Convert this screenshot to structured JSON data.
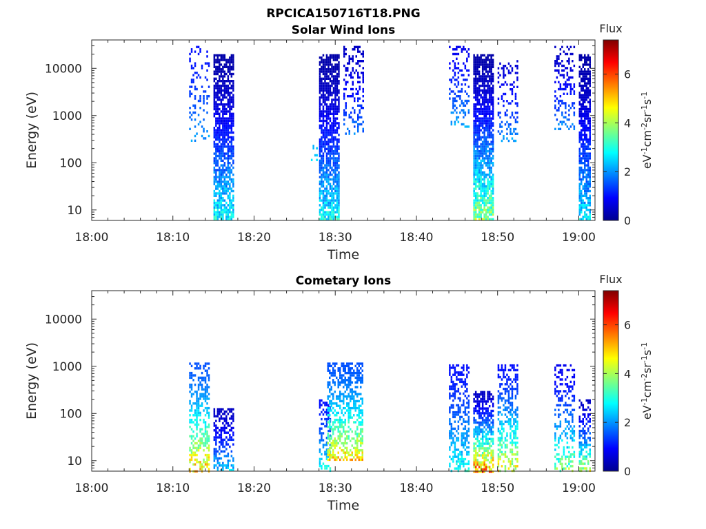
{
  "figure": {
    "title": "RPCICA150716T18.PNG"
  },
  "chart_data": [
    {
      "type": "heatmap",
      "title": "Solar Wind Ions",
      "xlabel": "Time",
      "ylabel": "Energy (eV)",
      "x_range": [
        "18:00",
        "19:02"
      ],
      "y_scale": "log",
      "y_range": [
        6,
        40000
      ],
      "x_ticks": [
        "18:00",
        "18:10",
        "18:20",
        "18:30",
        "18:40",
        "18:50",
        "19:00"
      ],
      "y_ticks": [
        "10",
        "100",
        "1000",
        "10000"
      ],
      "colorbar": {
        "title": "Flux",
        "label": "eV-1cm-2sr-1s-1",
        "ticks": [
          "0",
          "2",
          "4",
          "6"
        ],
        "range": [
          0,
          7.4
        ],
        "colormap": "jet"
      },
      "bursts": [
        {
          "t_start": "18:12",
          "t_end": "18:14",
          "e_min": 300,
          "e_max": 30000,
          "flux_low": 1.0,
          "flux_high": 2.4,
          "density": 0.22
        },
        {
          "t_start": "18:15",
          "t_end": "18:17",
          "e_min": 6,
          "e_max": 20000,
          "flux_low": 0.3,
          "flux_high": 3.5,
          "density": 0.75
        },
        {
          "t_start": "18:27",
          "t_end": "18:28",
          "e_min": 80,
          "e_max": 600,
          "flux_low": 2.0,
          "flux_high": 3.0,
          "density": 0.1
        },
        {
          "t_start": "18:28",
          "t_end": "18:30",
          "e_min": 6,
          "e_max": 20000,
          "flux_low": 0.3,
          "flux_high": 3.5,
          "density": 0.8
        },
        {
          "t_start": "18:31",
          "t_end": "18:33",
          "e_min": 400,
          "e_max": 30000,
          "flux_low": 0.5,
          "flux_high": 2.2,
          "density": 0.3
        },
        {
          "t_start": "18:44",
          "t_end": "18:46",
          "e_min": 600,
          "e_max": 30000,
          "flux_low": 0.8,
          "flux_high": 2.5,
          "density": 0.3
        },
        {
          "t_start": "18:47",
          "t_end": "18:49",
          "e_min": 6,
          "e_max": 20000,
          "flux_low": 0.3,
          "flux_high": 4.8,
          "density": 0.85
        },
        {
          "t_start": "18:50",
          "t_end": "18:52",
          "e_min": 300,
          "e_max": 15000,
          "flux_low": 0.6,
          "flux_high": 2.4,
          "density": 0.25
        },
        {
          "t_start": "18:57",
          "t_end": "18:59",
          "e_min": 500,
          "e_max": 30000,
          "flux_low": 0.5,
          "flux_high": 2.3,
          "density": 0.3
        },
        {
          "t_start": "19:00",
          "t_end": "19:01",
          "e_min": 6,
          "e_max": 20000,
          "flux_low": 0.3,
          "flux_high": 3.2,
          "density": 0.75
        }
      ]
    },
    {
      "type": "heatmap",
      "title": "Cometary Ions",
      "xlabel": "Time",
      "ylabel": "Energy (eV)",
      "x_range": [
        "18:00",
        "19:02"
      ],
      "y_scale": "log",
      "y_range": [
        6,
        40000
      ],
      "x_ticks": [
        "18:00",
        "18:10",
        "18:20",
        "18:30",
        "18:40",
        "18:50",
        "19:00"
      ],
      "y_ticks": [
        "10",
        "100",
        "1000",
        "10000"
      ],
      "colorbar": {
        "title": "Flux",
        "label": "eV-1cm-2sr-1s-1",
        "ticks": [
          "0",
          "2",
          "4",
          "6"
        ],
        "range": [
          0,
          7.4
        ],
        "colormap": "jet"
      },
      "bursts": [
        {
          "t_start": "18:12",
          "t_end": "18:14",
          "e_min": 6,
          "e_max": 1200,
          "flux_low": 1.5,
          "flux_high": 6.0,
          "density": 0.5
        },
        {
          "t_start": "18:15",
          "t_end": "18:17",
          "e_min": 6,
          "e_max": 130,
          "flux_low": 0.5,
          "flux_high": 3.0,
          "density": 0.55
        },
        {
          "t_start": "18:28",
          "t_end": "18:29",
          "e_min": 6,
          "e_max": 200,
          "flux_low": 1.0,
          "flux_high": 3.5,
          "density": 0.4
        },
        {
          "t_start": "18:29",
          "t_end": "18:33",
          "e_min": 10,
          "e_max": 1200,
          "flux_low": 1.5,
          "flux_high": 5.8,
          "density": 0.55
        },
        {
          "t_start": "18:44",
          "t_end": "18:46",
          "e_min": 6,
          "e_max": 1100,
          "flux_low": 1.0,
          "flux_high": 3.5,
          "density": 0.45
        },
        {
          "t_start": "18:47",
          "t_end": "18:49",
          "e_min": 6,
          "e_max": 300,
          "flux_low": 0.5,
          "flux_high": 7.0,
          "density": 0.7
        },
        {
          "t_start": "18:50",
          "t_end": "18:52",
          "e_min": 6,
          "e_max": 1100,
          "flux_low": 1.0,
          "flux_high": 5.5,
          "density": 0.5
        },
        {
          "t_start": "18:57",
          "t_end": "18:59",
          "e_min": 6,
          "e_max": 1100,
          "flux_low": 0.8,
          "flux_high": 4.5,
          "density": 0.4
        },
        {
          "t_start": "19:00",
          "t_end": "19:01",
          "e_min": 6,
          "e_max": 200,
          "flux_low": 0.5,
          "flux_high": 5.0,
          "density": 0.55
        }
      ]
    }
  ]
}
